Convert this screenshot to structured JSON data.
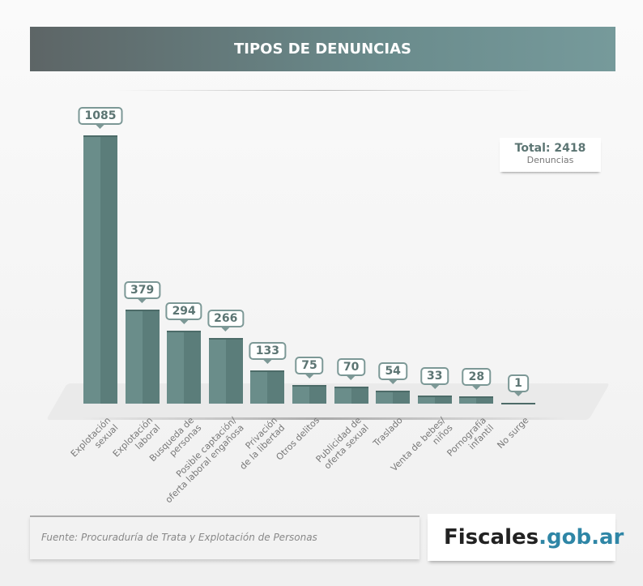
{
  "chart_data": {
    "type": "bar",
    "title": "TIPOS DE DENUNCIAS",
    "categories": [
      "Explotación\nsexual",
      "Explotación\nlaboral",
      "Busqueda de\npersonas",
      "Posible captación/\noferta laboral engañosa",
      "Privación\nde la libertad",
      "Otros delitos",
      "Publicidad de\noferta sexual",
      "Traslado",
      "Venta de bebes/\nniños",
      "Pornografía\ninfantil",
      "No surge"
    ],
    "values": [
      1085,
      379,
      294,
      266,
      133,
      75,
      70,
      54,
      33,
      28,
      1
    ],
    "ylim": [
      0,
      1085
    ],
    "total_label": "Total: 2418",
    "total_sub": "Denuncias"
  },
  "footer": {
    "source": "Fuente: Procuraduría de Trata y Explotación de Personas",
    "logo_main": "Fiscales",
    "logo_domain": ".gob.ar"
  },
  "colors": {
    "bar": "#6a8d8a",
    "accent": "#2f86a6"
  }
}
